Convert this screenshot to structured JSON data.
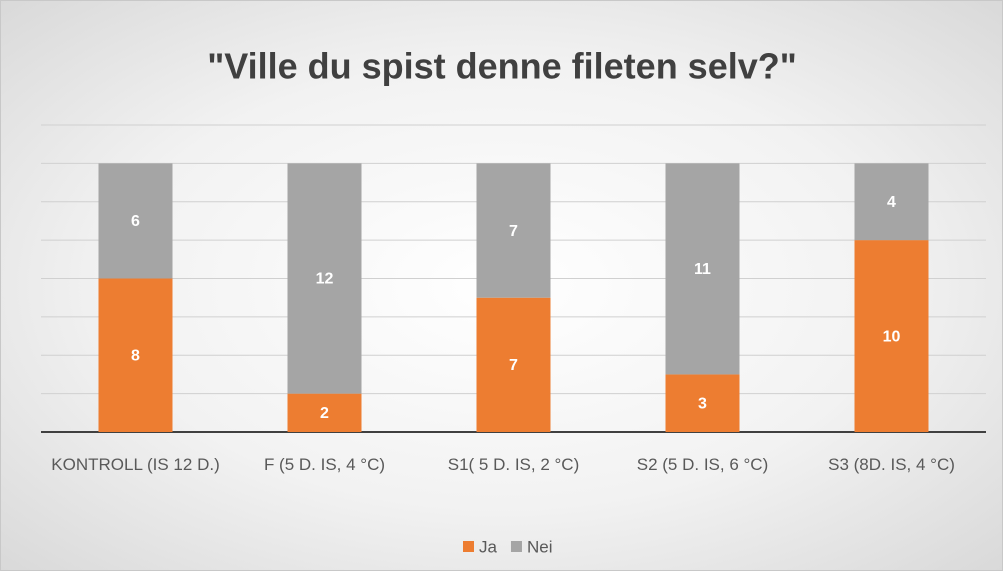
{
  "chart_data": {
    "type": "bar",
    "stacked": true,
    "title": "\"Ville du spist denne fileten selv?\"",
    "categories": [
      "KONTROLL (IS 12 D.)",
      "F (5 D. IS, 4 °C)",
      "S1( 5 D. IS, 2 °C)",
      "S2 (5 D. IS, 6 °C)",
      "S3 (8D. IS, 4 °C)"
    ],
    "series": [
      {
        "name": "Ja",
        "color": "#ed7d31",
        "values": [
          8,
          2,
          7,
          3,
          10
        ]
      },
      {
        "name": "Nei",
        "color": "#a5a5a5",
        "values": [
          6,
          12,
          7,
          11,
          4
        ]
      }
    ],
    "ylim": [
      0,
      16
    ],
    "yticks": [
      0,
      2,
      4,
      6,
      8,
      10,
      12,
      14,
      16
    ],
    "grid": true,
    "legend": "bottom"
  }
}
